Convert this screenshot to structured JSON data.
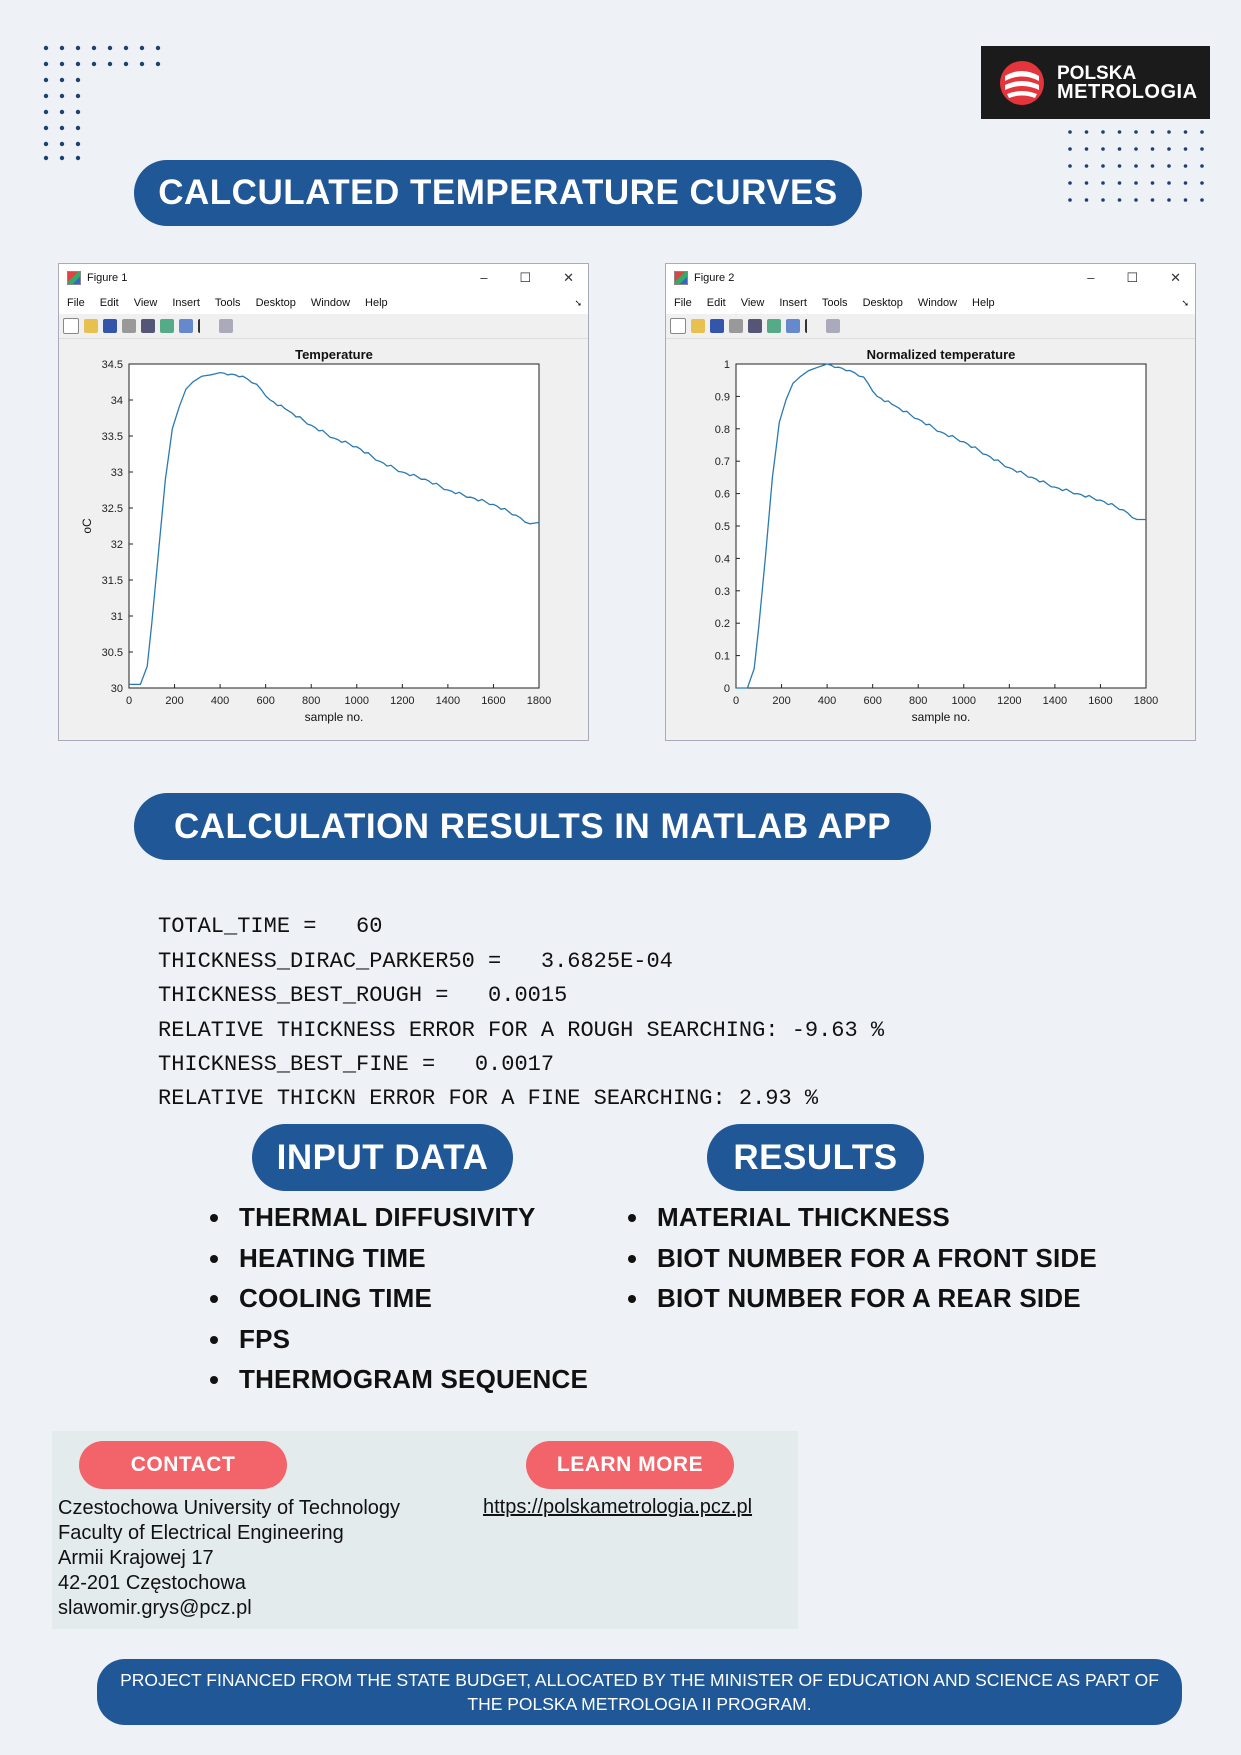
{
  "logo": {
    "line1": "POLSKA",
    "line2": "METROLOGIA"
  },
  "headings": {
    "curves": "CALCULATED TEMPERATURE CURVES",
    "matlab": "CALCULATION RESULTS IN MATLAB APP",
    "input": "INPUT DATA",
    "results": "RESULTS"
  },
  "figure_window": {
    "menu": [
      "File",
      "Edit",
      "View",
      "Insert",
      "Tools",
      "Desktop",
      "Window",
      "Help"
    ]
  },
  "chart_data": [
    {
      "type": "line",
      "window_title": "Figure 1",
      "title": "Temperature",
      "xlabel": "sample no.",
      "ylabel": "oC",
      "xlim": [
        0,
        1800
      ],
      "ylim": [
        30,
        34.5
      ],
      "xticks": [
        0,
        200,
        400,
        600,
        800,
        1000,
        1200,
        1400,
        1600,
        1800
      ],
      "yticks": [
        30,
        30.5,
        31,
        31.5,
        32,
        32.5,
        33,
        33.5,
        34,
        34.5
      ],
      "ytick_labels": [
        "30",
        "30.5",
        "31",
        "31.5",
        "32",
        "32.5",
        "33",
        "33.5",
        "34",
        "34.5"
      ],
      "x": [
        0,
        50,
        80,
        100,
        130,
        160,
        190,
        220,
        250,
        280,
        320,
        360,
        400,
        450,
        500,
        560,
        620,
        700,
        800,
        900,
        1000,
        1100,
        1200,
        1300,
        1400,
        1500,
        1600,
        1700,
        1760,
        1800
      ],
      "y": [
        30.05,
        30.05,
        30.3,
        30.9,
        31.9,
        32.9,
        33.6,
        33.9,
        34.15,
        34.25,
        34.33,
        34.35,
        34.38,
        34.36,
        34.33,
        34.22,
        34.0,
        33.85,
        33.65,
        33.47,
        33.35,
        33.15,
        33.0,
        32.9,
        32.75,
        32.65,
        32.55,
        32.4,
        32.28,
        32.3
      ],
      "grid": false
    },
    {
      "type": "line",
      "window_title": "Figure 2",
      "title": "Normalized temperature",
      "xlabel": "sample no.",
      "ylabel": "",
      "xlim": [
        0,
        1800
      ],
      "ylim": [
        0,
        1
      ],
      "xticks": [
        0,
        200,
        400,
        600,
        800,
        1000,
        1200,
        1400,
        1600,
        1800
      ],
      "yticks": [
        0,
        0.1,
        0.2,
        0.3,
        0.4,
        0.5,
        0.6,
        0.7,
        0.8,
        0.9,
        1
      ],
      "ytick_labels": [
        "0",
        "0.1",
        "0.2",
        "0.3",
        "0.4",
        "0.5",
        "0.6",
        "0.7",
        "0.8",
        "0.9",
        "1"
      ],
      "x": [
        0,
        50,
        80,
        100,
        130,
        160,
        190,
        220,
        250,
        280,
        320,
        360,
        400,
        450,
        500,
        560,
        620,
        700,
        800,
        900,
        1000,
        1100,
        1200,
        1300,
        1400,
        1500,
        1600,
        1700,
        1760,
        1800
      ],
      "y": [
        0.0,
        0.0,
        0.06,
        0.19,
        0.41,
        0.65,
        0.82,
        0.89,
        0.94,
        0.96,
        0.98,
        0.99,
        1.0,
        0.99,
        0.98,
        0.96,
        0.9,
        0.87,
        0.83,
        0.79,
        0.76,
        0.72,
        0.68,
        0.65,
        0.62,
        0.6,
        0.58,
        0.55,
        0.52,
        0.52
      ],
      "grid": false
    }
  ],
  "matlab_output": [
    "TOTAL_TIME =   60",
    "THICKNESS_DIRAC_PARKER50 =   3.6825E-04",
    "THICKNESS_BEST_ROUGH =   0.0015",
    "RELATIVE THICKNESS ERROR FOR A ROUGH SEARCHING: -9.63 %",
    "THICKNESS_BEST_FINE =   0.0017",
    "RELATIVE THICKN ERROR FOR A FINE SEARCHING: 2.93 %"
  ],
  "input_items": [
    "THERMAL DIFFUSIVITY",
    "HEATING TIME",
    "COOLING TIME",
    "FPS",
    "THERMOGRAM SEQUENCE"
  ],
  "result_items": [
    "MATERIAL THICKNESS",
    "BIOT NUMBER FOR A FRONT SIDE",
    "BIOT NUMBER FOR A REAR SIDE"
  ],
  "contact": {
    "button": "CONTACT",
    "lines": [
      "Czestochowa University of Technology",
      "Faculty of Electrical Engineering",
      "Armii Krajowej 17",
      "42-201 Częstochowa",
      "slawomir.grys@pcz.pl"
    ]
  },
  "learn_more": {
    "button": "LEARN MORE",
    "url": "https://polskametrologia.pcz.pl"
  },
  "footer": "PROJECT FINANCED FROM THE STATE BUDGET, ALLOCATED BY THE MINISTER OF EDUCATION AND SCIENCE AS PART OF THE POLSKA METROLOGIA II PROGRAM.",
  "colors": {
    "navy": "#1f5797",
    "coral": "#f2646a",
    "background": "#eef1f6",
    "curve": "#2a7ab0"
  }
}
